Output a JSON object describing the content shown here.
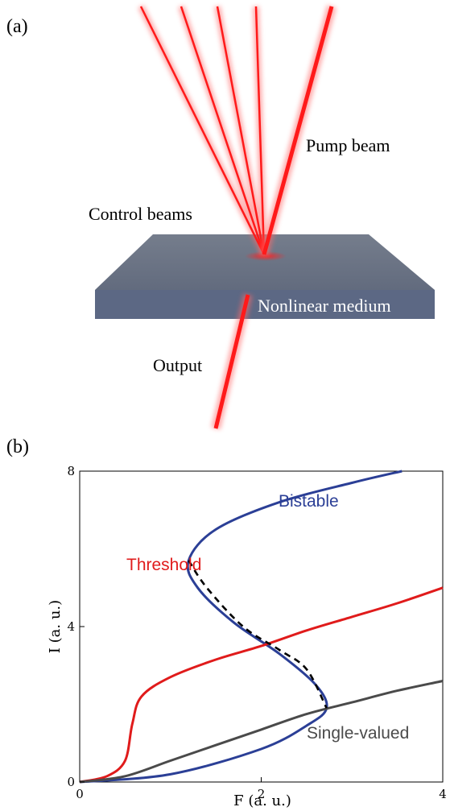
{
  "panel_a": {
    "label": "(a)",
    "pump_label": "Pump beam",
    "control_label": "Control beams",
    "medium_label": "Nonlinear medium",
    "output_label": "Output"
  },
  "panel_b": {
    "label": "(b)"
  },
  "colors": {
    "beam": "#ff1a1a",
    "slab_top": "#6d7688",
    "slab_side": "#5f6c86",
    "bistable": "#2b3f96",
    "threshold": "#e01b1b",
    "single_valued": "#4a4a4a"
  },
  "chart_data": {
    "type": "line",
    "xlabel": "F (a. u.)",
    "ylabel": "I (a. u.)",
    "xlim": [
      0,
      4
    ],
    "ylim": [
      0,
      8
    ],
    "x_ticks": [
      "0",
      "2",
      "4"
    ],
    "y_ticks": [
      "0",
      "4",
      "8"
    ],
    "grid": false,
    "series": [
      {
        "name": "Bistable",
        "color": "#2b3f96",
        "points": [
          [
            0,
            0
          ],
          [
            1.0,
            0.2
          ],
          [
            2.0,
            0.85
          ],
          [
            2.5,
            1.45
          ],
          [
            2.72,
            1.9
          ],
          [
            2.6,
            2.5
          ],
          [
            2.2,
            3.3
          ],
          [
            1.7,
            4.1
          ],
          [
            1.3,
            5.0
          ],
          [
            1.2,
            5.7
          ],
          [
            1.5,
            6.5
          ],
          [
            2.2,
            7.2
          ],
          [
            3.0,
            7.7
          ],
          [
            3.55,
            8.0
          ]
        ]
      },
      {
        "name": "Threshold",
        "color": "#e01b1b",
        "points": [
          [
            0,
            0
          ],
          [
            0.3,
            0.15
          ],
          [
            0.5,
            0.55
          ],
          [
            0.58,
            1.5
          ],
          [
            0.68,
            2.2
          ],
          [
            1.0,
            2.7
          ],
          [
            1.5,
            3.15
          ],
          [
            2.0,
            3.5
          ],
          [
            2.5,
            3.9
          ],
          [
            3.0,
            4.25
          ],
          [
            3.5,
            4.6
          ],
          [
            4.0,
            5.0
          ]
        ]
      },
      {
        "name": "Single-valued",
        "color": "#4a4a4a",
        "points": [
          [
            0,
            0
          ],
          [
            0.5,
            0.15
          ],
          [
            1.0,
            0.55
          ],
          [
            1.5,
            0.95
          ],
          [
            2.0,
            1.35
          ],
          [
            2.5,
            1.75
          ],
          [
            3.0,
            2.05
          ],
          [
            3.5,
            2.35
          ],
          [
            4.0,
            2.6
          ]
        ]
      }
    ],
    "unstable_branch": {
      "style": "dashed",
      "color": "#000000",
      "points": [
        [
          1.2,
          5.7
        ],
        [
          1.4,
          5.0
        ],
        [
          1.8,
          4.0
        ],
        [
          2.2,
          3.4
        ],
        [
          2.5,
          2.9
        ],
        [
          2.72,
          1.9
        ]
      ]
    }
  }
}
